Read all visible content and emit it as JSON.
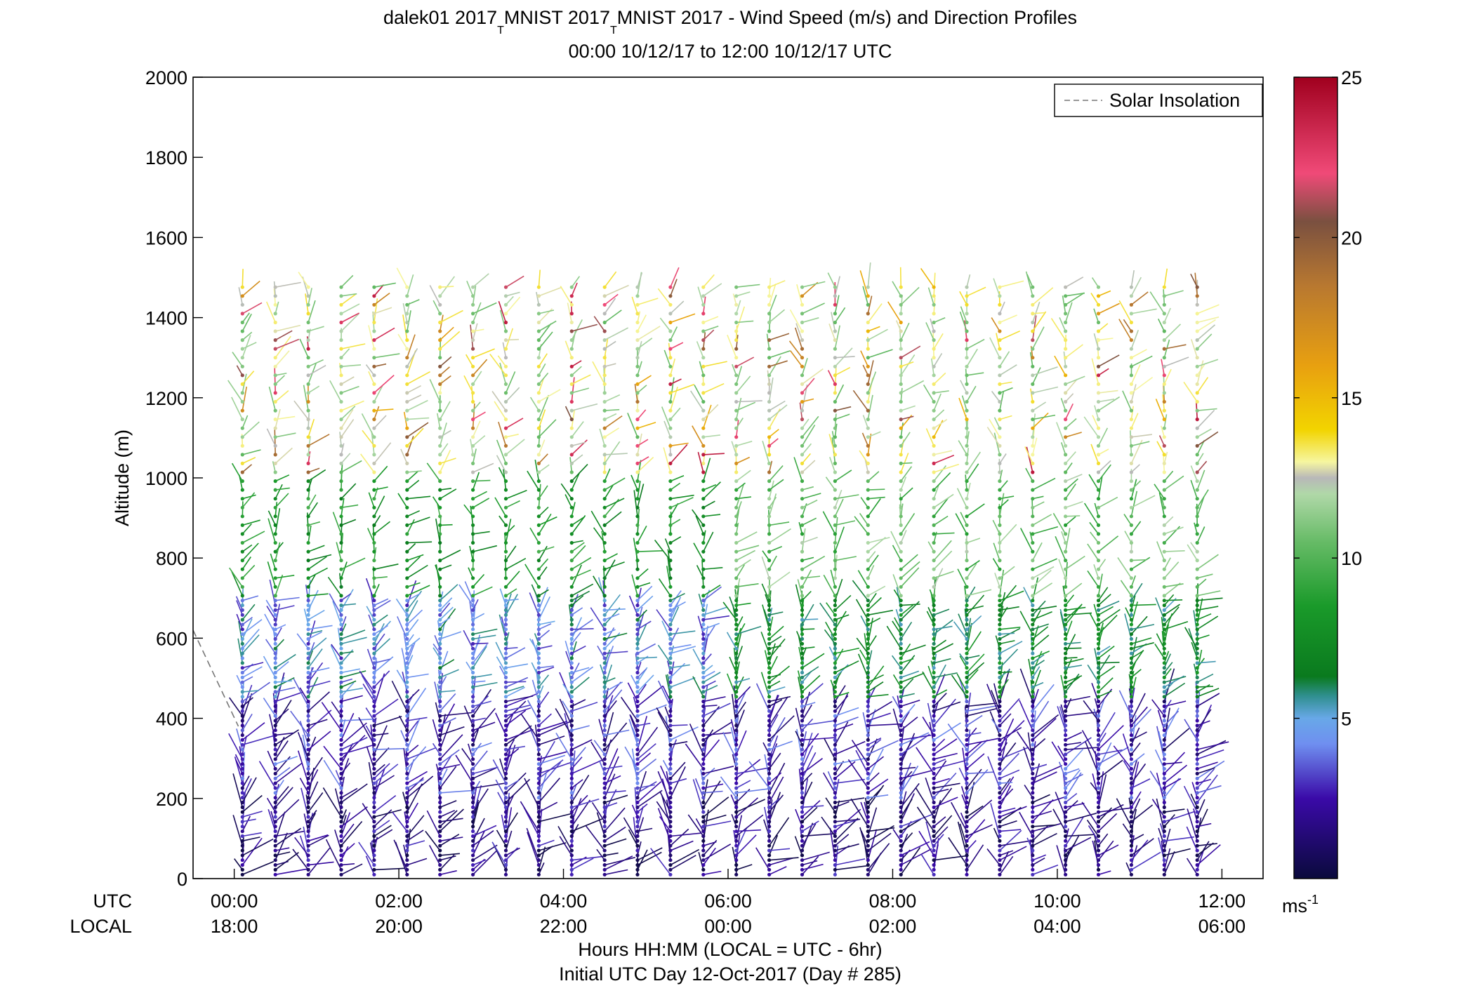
{
  "chart_data": {
    "type": "scatter",
    "title_parts": [
      "dalek01 2017",
      "T",
      "MNIST 2017",
      "T",
      "MNIST 2017 - Wind Speed (m/s) and Direction Profiles"
    ],
    "subtitle": "00:00 10/12/17 to 12:00 10/12/17  UTC",
    "ylabel": "Altitude (m)",
    "xlabel": "Hours HH:MM  (LOCAL = UTC - 6hr)",
    "xlabel2": "Initial UTC Day 12-Oct-2017 (Day # 285)",
    "row_label_utc": "UTC",
    "row_label_local": "LOCAL",
    "x_range_hours": [
      -0.5,
      12.5
    ],
    "ylim": [
      0,
      2000
    ],
    "y_ticks": [
      0,
      200,
      400,
      600,
      800,
      1000,
      1200,
      1400,
      1600,
      1800,
      2000
    ],
    "y_tick_labels": [
      "0",
      "200",
      "400",
      "600",
      "800",
      "1000",
      "1200",
      "1400",
      "1600",
      "1800",
      "2000"
    ],
    "x_ticks_hours": [
      0,
      2,
      4,
      6,
      8,
      10,
      12
    ],
    "x_tick_labels_utc": [
      "00:00",
      "02:00",
      "04:00",
      "06:00",
      "08:00",
      "10:00",
      "12:00"
    ],
    "x_tick_labels_local": [
      "18:00",
      "20:00",
      "22:00",
      "00:00",
      "02:00",
      "04:00",
      "06:00"
    ],
    "legend": {
      "position": "top-right",
      "entries": [
        {
          "label": "Solar Insolation",
          "style": "dashed",
          "color": "#888888"
        }
      ]
    },
    "colorbar": {
      "range": [
        0,
        25
      ],
      "ticks": [
        5,
        10,
        15,
        20,
        25
      ],
      "tick_labels": [
        "5",
        "10",
        "15",
        "20",
        "25"
      ],
      "unit_base": "ms",
      "unit_exp": "-1",
      "colormap": [
        [
          0,
          "#0a0a3c"
        ],
        [
          2.5,
          "#3a0aa8"
        ],
        [
          4.2,
          "#6f8ff0"
        ],
        [
          5.0,
          "#68a8e8"
        ],
        [
          5.7,
          "#2f8f8f"
        ],
        [
          6.3,
          "#0a7a1e"
        ],
        [
          8.5,
          "#1a9a2a"
        ],
        [
          10.5,
          "#66bb66"
        ],
        [
          12.0,
          "#b0d8a8"
        ],
        [
          12.5,
          "#b8b8b8"
        ],
        [
          13.0,
          "#f6f6a0"
        ],
        [
          14.0,
          "#f2d400"
        ],
        [
          16.0,
          "#e8a010"
        ],
        [
          18.5,
          "#b87830"
        ],
        [
          20.5,
          "#7a5040"
        ],
        [
          22.0,
          "#f04a78"
        ],
        [
          25,
          "#a0001e"
        ]
      ]
    },
    "profile_times_hours": [
      0.1,
      0.5,
      0.9,
      1.3,
      1.7,
      2.1,
      2.5,
      2.9,
      3.3,
      3.7,
      4.1,
      4.5,
      4.9,
      5.3,
      5.7,
      6.1,
      6.5,
      6.9,
      7.3,
      7.7,
      8.1,
      8.5,
      8.9,
      9.3,
      9.7,
      10.1,
      10.5,
      10.9,
      11.3,
      11.7
    ],
    "profile_altitude_top_m": 1490,
    "approx_speed_by_altitude_band": [
      {
        "altitude_range_m": [
          0,
          200
        ],
        "speed_ms": 1.5
      },
      {
        "altitude_range_m": [
          200,
          450
        ],
        "speed_ms": 2.5
      },
      {
        "altitude_range_m": [
          450,
          700
        ],
        "speed_ms": 4.5
      },
      {
        "altitude_range_m": [
          700,
          1000
        ],
        "speed_ms": 8
      },
      {
        "altitude_range_m": [
          1000,
          1500
        ],
        "speed_ms": 12
      }
    ],
    "solar_insolation": {
      "x_hours": [
        -0.5,
        0.05
      ],
      "y_m": [
        620,
        380
      ]
    }
  }
}
